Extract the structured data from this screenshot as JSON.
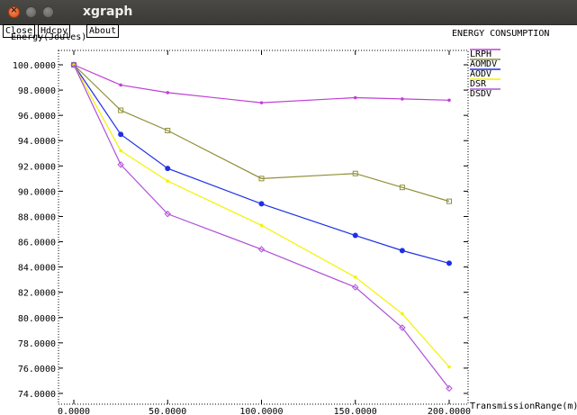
{
  "window": {
    "title": "xgraph"
  },
  "buttons": {
    "close": "Close",
    "hdcpy": "Hdcpy",
    "about": "About"
  },
  "chart_data": {
    "type": "line",
    "title": "ENERGY CONSUMPTION",
    "ylabel": "Energy(Joules)",
    "xlabel": "TransmissionRange(m)",
    "xlim": [
      0,
      200
    ],
    "ylim": [
      73,
      101
    ],
    "x_ticks": [
      "0.0000",
      "50.0000",
      "100.0000",
      "150.0000",
      "200.0000"
    ],
    "y_ticks": [
      "74.0000",
      "76.0000",
      "78.0000",
      "80.0000",
      "82.0000",
      "84.0000",
      "86.0000",
      "88.0000",
      "90.0000",
      "92.0000",
      "94.0000",
      "96.0000",
      "98.0000",
      "100.0000"
    ],
    "legend_placement": "top-right",
    "series": [
      {
        "name": "LRPH",
        "color": "#c03fd6",
        "x": [
          0,
          25,
          50,
          100,
          150,
          175,
          200
        ],
        "y": [
          100,
          98.4,
          97.8,
          97.0,
          97.4,
          97.3,
          97.2
        ]
      },
      {
        "name": "AOMDV",
        "color": "#8f8f3a",
        "x": [
          0,
          25,
          50,
          100,
          150,
          175,
          200
        ],
        "y": [
          100,
          96.4,
          94.8,
          91.0,
          91.4,
          90.3,
          89.2
        ]
      },
      {
        "name": "AODV",
        "color": "#1f2fe6",
        "x": [
          0,
          25,
          50,
          100,
          150,
          175,
          200
        ],
        "y": [
          100,
          94.5,
          91.8,
          89.0,
          86.5,
          85.3,
          84.3
        ]
      },
      {
        "name": "DSR",
        "color": "#f2f200",
        "x": [
          0,
          25,
          50,
          100,
          150,
          175,
          200
        ],
        "y": [
          100,
          93.2,
          90.8,
          87.3,
          83.2,
          80.3,
          76.1
        ]
      },
      {
        "name": "DSDV",
        "color": "#b050d8",
        "x": [
          0,
          25,
          50,
          100,
          150,
          175,
          200
        ],
        "y": [
          100,
          92.1,
          88.2,
          85.4,
          82.4,
          79.2,
          74.4
        ]
      }
    ]
  }
}
